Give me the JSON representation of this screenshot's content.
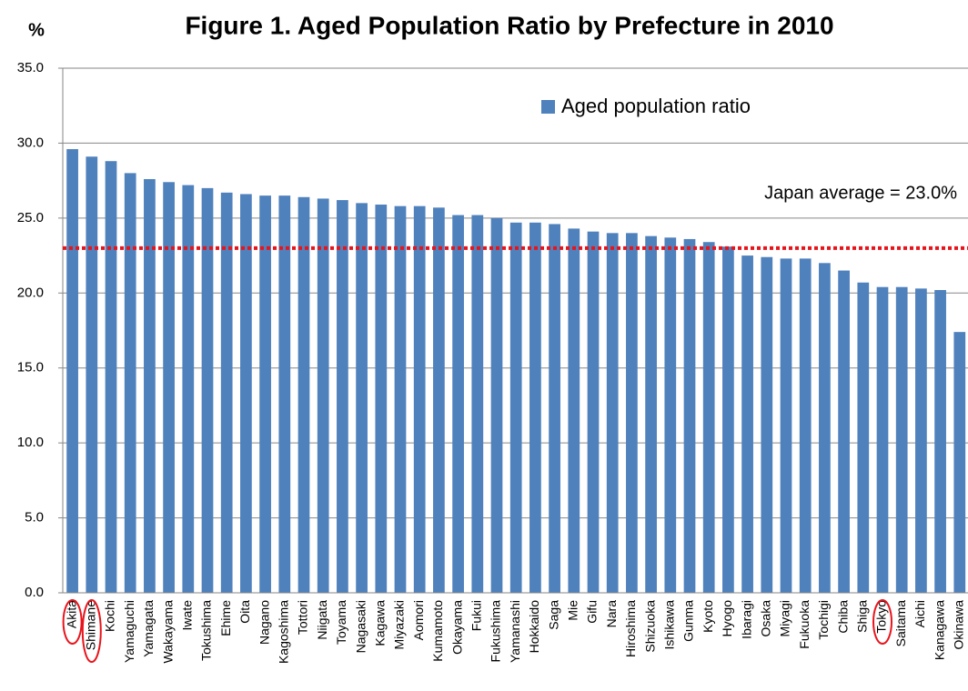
{
  "chart_data": {
    "type": "bar",
    "title": "Figure 1. Aged Population Ratio by Prefecture in 2010",
    "y_axis_label": "%",
    "categories": [
      "Akita",
      "Shimane",
      "Kochi",
      "Yamaguchi",
      "Yamagata",
      "Wakayama",
      "Iwate",
      "Tokushima",
      "Ehime",
      "Oita",
      "Nagano",
      "Kagoshima",
      "Tottori",
      "Niigata",
      "Toyama",
      "Nagasaki",
      "Kagawa",
      "Miyazaki",
      "Aomori",
      "Kumamoto",
      "Okayama",
      "Fukui",
      "Fukushima",
      "Yamanashi",
      "Hokkaido",
      "Saga",
      "Mie",
      "Gifu",
      "Nara",
      "Hiroshima",
      "Shizuoka",
      "Ishikawa",
      "Gunma",
      "Kyoto",
      "Hyogo",
      "Ibaragi",
      "Osaka",
      "Miyagi",
      "Fukuoka",
      "Tochigi",
      "Chiba",
      "Shiga",
      "Tokyo",
      "Saitama",
      "Aichi",
      "Kanagawa",
      "Okinawa"
    ],
    "series": [
      {
        "name": "Aged population ratio",
        "color": "#4f81bd",
        "values": [
          29.6,
          29.1,
          28.8,
          28.0,
          27.6,
          27.4,
          27.2,
          27.0,
          26.7,
          26.6,
          26.5,
          26.5,
          26.4,
          26.3,
          26.2,
          26.0,
          25.9,
          25.8,
          25.8,
          25.7,
          25.2,
          25.2,
          25.0,
          24.7,
          24.7,
          24.6,
          24.3,
          24.1,
          24.0,
          24.0,
          23.8,
          23.7,
          23.6,
          23.4,
          23.1,
          22.5,
          22.4,
          22.3,
          22.3,
          22.0,
          21.5,
          20.7,
          20.4,
          20.4,
          20.3,
          20.2,
          17.4
        ]
      }
    ],
    "average": 23.0,
    "average_label": "Japan average = 23.0%",
    "average_color": "#e8141c",
    "ylim": [
      0,
      35
    ],
    "yticks": [
      {
        "value": 0,
        "label": "0.0"
      },
      {
        "value": 5,
        "label": "5.0"
      },
      {
        "value": 10,
        "label": "10.0"
      },
      {
        "value": 15,
        "label": "15.0"
      },
      {
        "value": 20,
        "label": "20.0"
      },
      {
        "value": 25,
        "label": "25.0"
      },
      {
        "value": 30,
        "label": "30.0"
      },
      {
        "value": 35,
        "label": "35.0"
      }
    ],
    "grid": true
  }
}
